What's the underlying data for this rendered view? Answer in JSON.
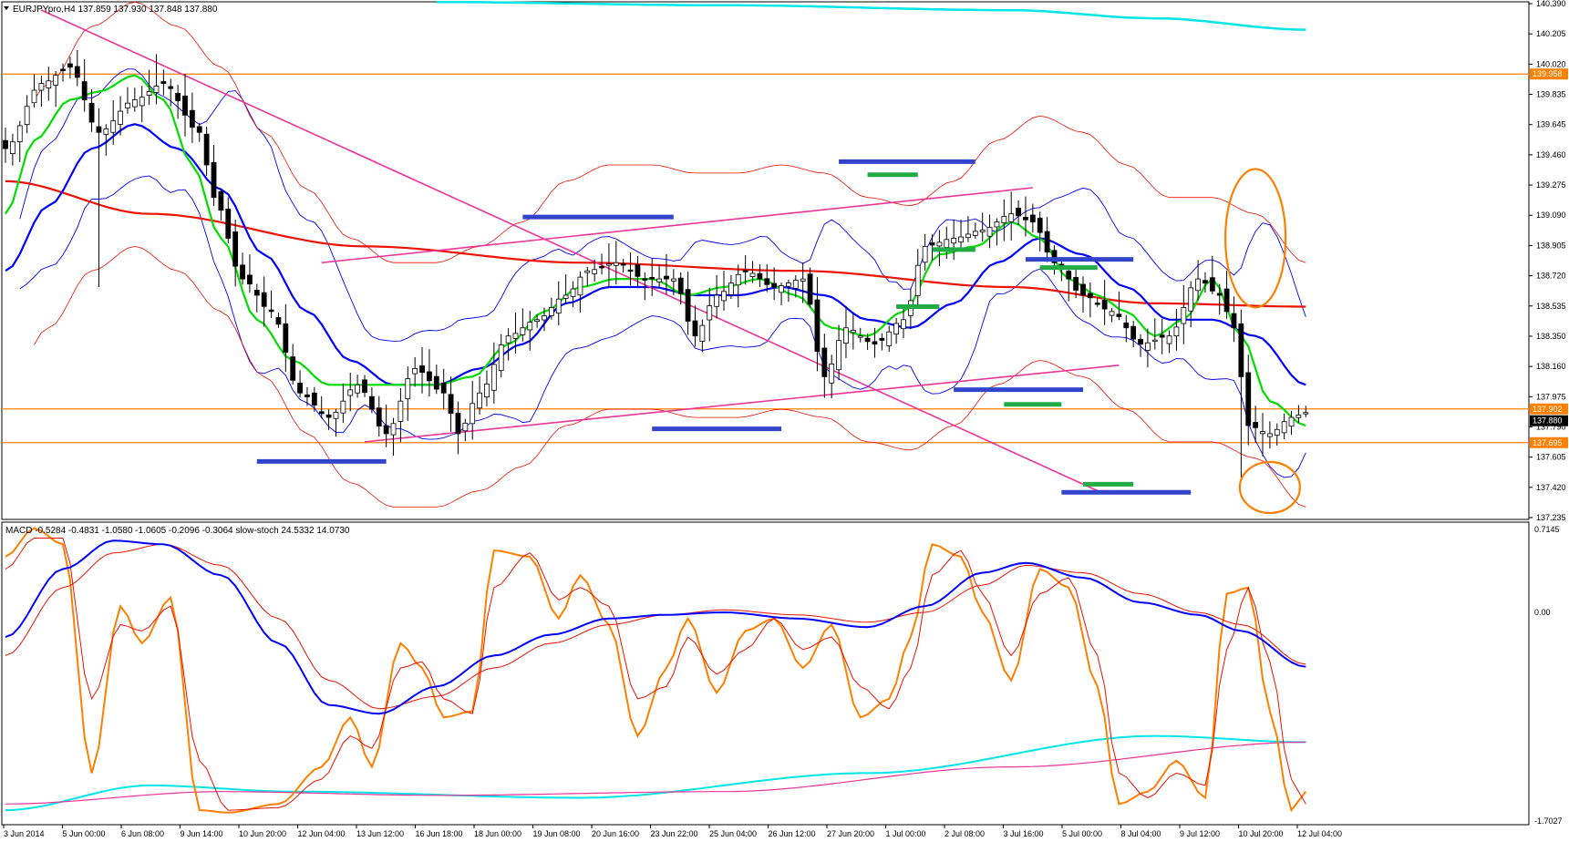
{
  "chart_data": {
    "type": "candlestick",
    "symbol_header": "EURJPYpro,H4  137.859 137.930 137.848 137.880",
    "indicator_header": "MACD -0.5284 -0.4831 -1.0580 -1.0605 -0.2096 -0.3064  slow-stoch 24.5332 14.0730",
    "price_axis": {
      "ylim": [
        137.235,
        140.39
      ],
      "ticks": [
        "140.390",
        "140.205",
        "140.020",
        "139.835",
        "139.645",
        "139.460",
        "139.275",
        "139.090",
        "138.905",
        "138.720",
        "138.535",
        "138.350",
        "138.160",
        "137.975",
        "137.790",
        "137.605",
        "137.420",
        "137.235"
      ]
    },
    "price_tags": [
      {
        "text": "139.958",
        "value": 139.958,
        "color": "#ff7f00"
      },
      {
        "text": "137.902",
        "value": 137.902,
        "color": "#ff7f00"
      },
      {
        "text": "137.880",
        "value": 137.88,
        "color": "#000000"
      },
      {
        "text": "137.695",
        "value": 137.695,
        "color": "#ff7f00"
      }
    ],
    "indicator_axis": {
      "ylim": [
        -1.7027,
        0.7145
      ],
      "ticks": [
        "0.7145",
        "0.00",
        "-1.7027"
      ]
    },
    "time_labels": [
      "3 Jun 2014",
      "5 Jun 00:00",
      "6 Jun 08:00",
      "9 Jun 14:00",
      "10 Jun 20:00",
      "12 Jun 04:00",
      "13 Jun 12:00",
      "16 Jun 18:00",
      "18 Jun 00:00",
      "19 Jun 08:00",
      "20 Jun 16:00",
      "23 Jun 22:00",
      "25 Jun 04:00",
      "26 Jun 12:00",
      "27 Jun 20:00",
      "1 Jul 00:00",
      "2 Jul 08:00",
      "3 Jul 16:00",
      "5 Jul 00:00",
      "8 Jul 04:00",
      "9 Jul 12:00",
      "10 Jul 20:00",
      "12 Jul 04:00"
    ],
    "horizontal_levels": [
      139.958,
      137.902,
      137.695
    ],
    "close_anchors": [
      [
        0,
        139.5
      ],
      [
        5,
        139.9
      ],
      [
        9,
        140.0
      ],
      [
        13,
        139.6
      ],
      [
        18,
        139.8
      ],
      [
        22,
        139.9
      ],
      [
        27,
        139.6
      ],
      [
        29,
        139.2
      ],
      [
        33,
        138.7
      ],
      [
        37,
        138.5
      ],
      [
        41,
        138.0
      ],
      [
        45,
        137.85
      ],
      [
        49,
        138.05
      ],
      [
        53,
        137.75
      ],
      [
        57,
        138.15
      ],
      [
        61,
        138.0
      ],
      [
        63,
        137.75
      ],
      [
        66,
        138.0
      ],
      [
        70,
        138.35
      ],
      [
        74,
        138.45
      ],
      [
        78,
        138.6
      ],
      [
        81,
        138.75
      ],
      [
        85,
        138.8
      ],
      [
        89,
        138.7
      ],
      [
        93,
        138.7
      ],
      [
        96,
        138.35
      ],
      [
        99,
        138.6
      ],
      [
        103,
        138.75
      ],
      [
        107,
        138.65
      ],
      [
        111,
        138.7
      ],
      [
        114,
        138.1
      ],
      [
        117,
        138.4
      ],
      [
        121,
        138.3
      ],
      [
        125,
        138.45
      ],
      [
        128,
        138.9
      ],
      [
        132,
        138.95
      ],
      [
        136,
        139.0
      ],
      [
        140,
        139.1
      ],
      [
        143,
        139.05
      ],
      [
        146,
        138.8
      ],
      [
        150,
        138.6
      ],
      [
        154,
        138.5
      ],
      [
        158,
        138.3
      ],
      [
        162,
        138.35
      ],
      [
        166,
        138.7
      ],
      [
        169,
        138.6
      ],
      [
        171,
        138.4
      ],
      [
        173,
        137.8
      ],
      [
        176,
        137.75
      ],
      [
        179,
        137.85
      ],
      [
        181,
        137.88
      ]
    ],
    "ema_anchors": [
      [
        0,
        139.1
      ],
      [
        4,
        139.55
      ],
      [
        9,
        139.8
      ],
      [
        13,
        139.85
      ],
      [
        18,
        139.95
      ],
      [
        22,
        139.8
      ],
      [
        26,
        139.4
      ],
      [
        30,
        138.95
      ],
      [
        35,
        138.45
      ],
      [
        40,
        138.2
      ],
      [
        45,
        138.05
      ],
      [
        50,
        138.05
      ],
      [
        55,
        138.05
      ],
      [
        60,
        138.05
      ],
      [
        65,
        138.1
      ],
      [
        70,
        138.3
      ],
      [
        75,
        138.5
      ],
      [
        80,
        138.65
      ],
      [
        85,
        138.7
      ],
      [
        90,
        138.7
      ],
      [
        95,
        138.6
      ],
      [
        100,
        138.65
      ],
      [
        105,
        138.7
      ],
      [
        110,
        138.6
      ],
      [
        115,
        138.4
      ],
      [
        120,
        138.35
      ],
      [
        125,
        138.5
      ],
      [
        130,
        138.85
      ],
      [
        135,
        138.9
      ],
      [
        140,
        139.05
      ],
      [
        144,
        138.95
      ],
      [
        148,
        138.7
      ],
      [
        152,
        138.6
      ],
      [
        156,
        138.5
      ],
      [
        160,
        138.35
      ],
      [
        164,
        138.45
      ],
      [
        168,
        138.7
      ],
      [
        172,
        138.35
      ],
      [
        176,
        137.95
      ],
      [
        181,
        137.8
      ]
    ],
    "sma_anchors": [
      [
        0,
        138.75
      ],
      [
        6,
        139.15
      ],
      [
        12,
        139.5
      ],
      [
        18,
        139.65
      ],
      [
        24,
        139.5
      ],
      [
        30,
        139.25
      ],
      [
        36,
        138.85
      ],
      [
        42,
        138.5
      ],
      [
        48,
        138.2
      ],
      [
        54,
        138.05
      ],
      [
        60,
        138.05
      ],
      [
        66,
        138.15
      ],
      [
        72,
        138.3
      ],
      [
        78,
        138.55
      ],
      [
        84,
        138.65
      ],
      [
        90,
        138.65
      ],
      [
        96,
        138.6
      ],
      [
        102,
        138.6
      ],
      [
        108,
        138.65
      ],
      [
        114,
        138.6
      ],
      [
        120,
        138.45
      ],
      [
        126,
        138.4
      ],
      [
        132,
        138.55
      ],
      [
        138,
        138.8
      ],
      [
        144,
        138.95
      ],
      [
        150,
        138.85
      ],
      [
        156,
        138.65
      ],
      [
        162,
        138.45
      ],
      [
        168,
        138.45
      ],
      [
        174,
        138.35
      ],
      [
        181,
        138.05
      ]
    ],
    "long_ma_anchors": [
      [
        0,
        139.3
      ],
      [
        20,
        139.1
      ],
      [
        50,
        138.9
      ],
      [
        80,
        138.8
      ],
      [
        110,
        138.75
      ],
      [
        140,
        138.65
      ],
      [
        160,
        138.55
      ],
      [
        181,
        138.53
      ]
    ],
    "cyan_ma_anchors": [
      [
        60,
        140.4
      ],
      [
        100,
        140.38
      ],
      [
        140,
        140.35
      ],
      [
        160,
        140.3
      ],
      [
        181,
        140.23
      ]
    ],
    "macd_main": [
      [
        0,
        -0.2
      ],
      [
        8,
        0.35
      ],
      [
        15,
        0.58
      ],
      [
        22,
        0.55
      ],
      [
        30,
        0.3
      ],
      [
        38,
        -0.25
      ],
      [
        45,
        -0.75
      ],
      [
        52,
        -0.82
      ],
      [
        60,
        -0.6
      ],
      [
        68,
        -0.35
      ],
      [
        76,
        -0.18
      ],
      [
        84,
        -0.05
      ],
      [
        92,
        -0.02
      ],
      [
        100,
        0.0
      ],
      [
        110,
        -0.05
      ],
      [
        120,
        -0.12
      ],
      [
        128,
        0.05
      ],
      [
        136,
        0.32
      ],
      [
        142,
        0.4
      ],
      [
        150,
        0.28
      ],
      [
        158,
        0.08
      ],
      [
        166,
        -0.02
      ],
      [
        172,
        -0.15
      ],
      [
        181,
        -0.44
      ]
    ],
    "macd_signal": [
      [
        0,
        -0.35
      ],
      [
        8,
        0.2
      ],
      [
        15,
        0.48
      ],
      [
        22,
        0.55
      ],
      [
        30,
        0.38
      ],
      [
        38,
        -0.05
      ],
      [
        45,
        -0.55
      ],
      [
        52,
        -0.78
      ],
      [
        60,
        -0.68
      ],
      [
        68,
        -0.45
      ],
      [
        76,
        -0.25
      ],
      [
        84,
        -0.1
      ],
      [
        92,
        -0.02
      ],
      [
        100,
        0.02
      ],
      [
        110,
        -0.02
      ],
      [
        120,
        -0.08
      ],
      [
        128,
        -0.0
      ],
      [
        136,
        0.22
      ],
      [
        142,
        0.38
      ],
      [
        150,
        0.32
      ],
      [
        158,
        0.15
      ],
      [
        166,
        0.0
      ],
      [
        172,
        -0.1
      ],
      [
        181,
        -0.42
      ]
    ],
    "stoch_main": [
      [
        0,
        0.45
      ],
      [
        4,
        0.68
      ],
      [
        8,
        0.55
      ],
      [
        12,
        -1.3
      ],
      [
        16,
        0.05
      ],
      [
        19,
        -0.25
      ],
      [
        23,
        0.12
      ],
      [
        27,
        -1.6
      ],
      [
        31,
        -1.62
      ],
      [
        38,
        -1.55
      ],
      [
        44,
        -1.25
      ],
      [
        48,
        -0.85
      ],
      [
        51,
        -1.25
      ],
      [
        55,
        -0.25
      ],
      [
        58,
        -0.45
      ],
      [
        61,
        -0.85
      ],
      [
        65,
        -0.8
      ],
      [
        68,
        0.5
      ],
      [
        73,
        0.45
      ],
      [
        77,
        -0.05
      ],
      [
        80,
        0.3
      ],
      [
        84,
        -0.1
      ],
      [
        88,
        -1.0
      ],
      [
        92,
        -0.45
      ],
      [
        95,
        -0.05
      ],
      [
        99,
        -0.65
      ],
      [
        103,
        -0.15
      ],
      [
        107,
        -0.05
      ],
      [
        111,
        -0.45
      ],
      [
        115,
        -0.1
      ],
      [
        119,
        -0.85
      ],
      [
        123,
        -0.7
      ],
      [
        126,
        -0.2
      ],
      [
        129,
        0.55
      ],
      [
        133,
        0.45
      ],
      [
        136,
        0.0
      ],
      [
        140,
        -0.55
      ],
      [
        144,
        0.35
      ],
      [
        148,
        0.2
      ],
      [
        152,
        -0.6
      ],
      [
        155,
        -1.55
      ],
      [
        159,
        -1.45
      ],
      [
        163,
        -1.2
      ],
      [
        167,
        -1.5
      ],
      [
        170,
        0.15
      ],
      [
        173,
        0.2
      ],
      [
        176,
        -0.8
      ],
      [
        179,
        -1.6
      ],
      [
        181,
        -1.45
      ]
    ],
    "stoch_signal": [
      [
        0,
        0.35
      ],
      [
        4,
        0.6
      ],
      [
        8,
        0.6
      ],
      [
        12,
        -0.7
      ],
      [
        16,
        -0.1
      ],
      [
        19,
        -0.15
      ],
      [
        23,
        0.05
      ],
      [
        27,
        -1.2
      ],
      [
        31,
        -1.6
      ],
      [
        38,
        -1.58
      ],
      [
        44,
        -1.35
      ],
      [
        48,
        -1.0
      ],
      [
        51,
        -1.1
      ],
      [
        55,
        -0.45
      ],
      [
        58,
        -0.4
      ],
      [
        61,
        -0.7
      ],
      [
        65,
        -0.82
      ],
      [
        68,
        0.2
      ],
      [
        73,
        0.48
      ],
      [
        77,
        0.1
      ],
      [
        80,
        0.2
      ],
      [
        84,
        0.05
      ],
      [
        88,
        -0.7
      ],
      [
        92,
        -0.6
      ],
      [
        95,
        -0.2
      ],
      [
        99,
        -0.5
      ],
      [
        103,
        -0.3
      ],
      [
        107,
        -0.05
      ],
      [
        111,
        -0.3
      ],
      [
        115,
        -0.2
      ],
      [
        119,
        -0.6
      ],
      [
        123,
        -0.78
      ],
      [
        126,
        -0.45
      ],
      [
        129,
        0.3
      ],
      [
        133,
        0.5
      ],
      [
        136,
        0.15
      ],
      [
        140,
        -0.35
      ],
      [
        144,
        0.15
      ],
      [
        148,
        0.28
      ],
      [
        152,
        -0.35
      ],
      [
        155,
        -1.3
      ],
      [
        159,
        -1.5
      ],
      [
        163,
        -1.3
      ],
      [
        167,
        -1.4
      ],
      [
        170,
        -0.3
      ],
      [
        173,
        0.2
      ],
      [
        176,
        -0.4
      ],
      [
        179,
        -1.35
      ],
      [
        181,
        -1.55
      ]
    ],
    "stoch_ma_cyan": [
      [
        0,
        -1.6
      ],
      [
        20,
        -1.4
      ],
      [
        40,
        -1.45
      ],
      [
        80,
        -1.5
      ],
      [
        120,
        -1.3
      ],
      [
        160,
        -1.0
      ],
      [
        181,
        -1.05
      ]
    ],
    "stoch_ma_magenta": [
      [
        0,
        -1.55
      ],
      [
        30,
        -1.45
      ],
      [
        60,
        -1.48
      ],
      [
        100,
        -1.45
      ],
      [
        140,
        -1.25
      ],
      [
        181,
        -1.05
      ]
    ],
    "colors": {
      "background": "#ffffff",
      "frame": "#000000",
      "bull_candle": "#ffffff",
      "bear_candle": "#000000",
      "ema_fast": "#00dd00",
      "sma_mid": "#0000ff",
      "ma_long": "#ee1100",
      "ma_top": "#00e5e5",
      "bollinger": "#0000ff",
      "envelope": "#ee1100",
      "trendline": "#ee3399",
      "level": "#ff7f00",
      "blue_zone": "#3344cc",
      "green_zone": "#22aa44",
      "circle": "#ff7f00",
      "macd_main": "#0000ff",
      "macd_signal": "#ee1100",
      "stoch": "#ff7f00"
    }
  }
}
